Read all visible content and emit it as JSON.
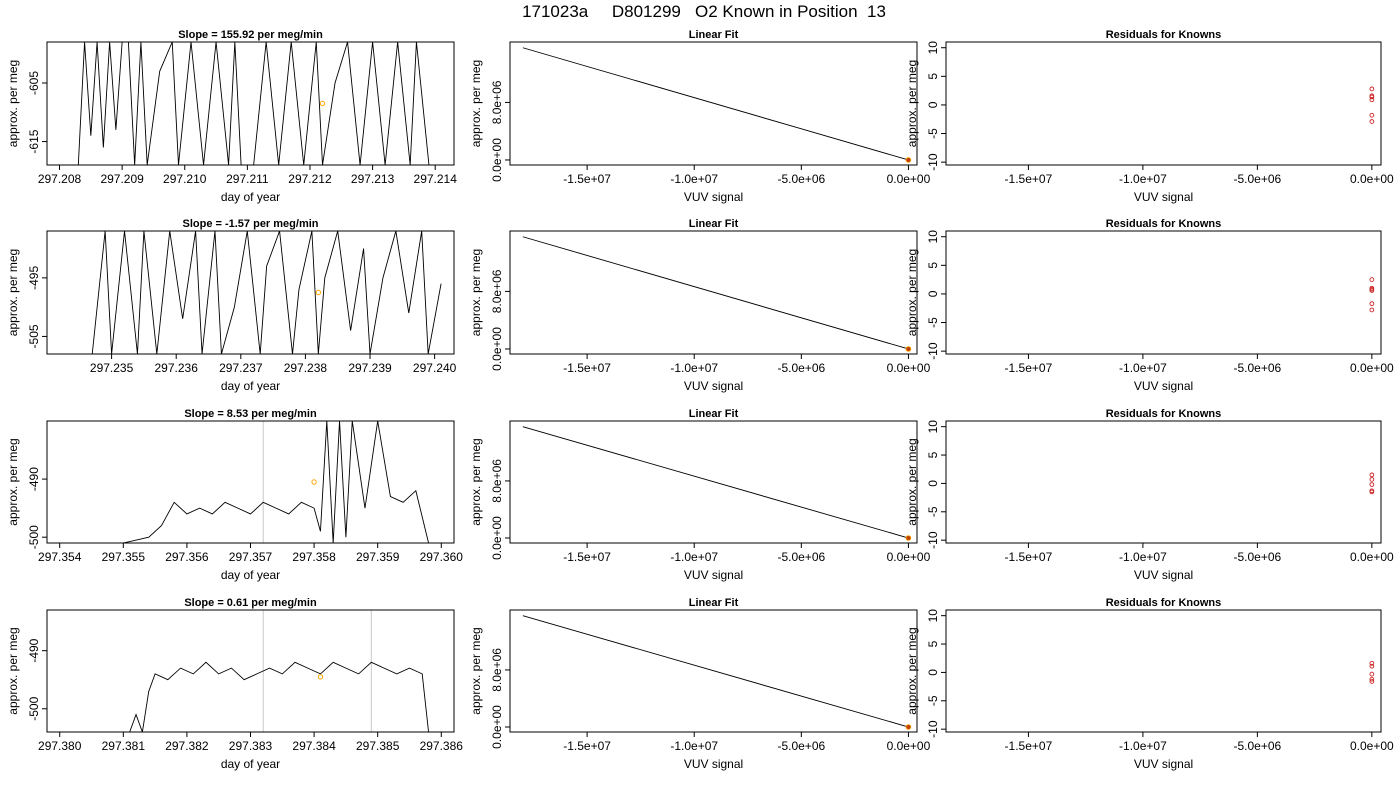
{
  "figure_title": "171023a     D801299   O2 Known in Position  13",
  "chart_data": [
    {
      "type": "line",
      "row": 1,
      "title": "Slope =  155.92  per meg/min",
      "xlabel": "day of year",
      "ylabel": "approx. per meg",
      "xlim": [
        297.2078,
        297.2143
      ],
      "ylim": [
        -619,
        -598
      ],
      "xticks": [
        "297.208",
        "297.209",
        "297.210",
        "297.211",
        "297.212",
        "297.213",
        "297.214"
      ],
      "yticks": [
        "-605",
        "-615"
      ],
      "series": [
        {
          "x": [
            297.2083,
            297.2084,
            297.2085,
            297.2086,
            297.2087,
            297.2088,
            297.2089,
            297.209,
            297.2091,
            297.2092,
            297.2093,
            297.2094,
            297.2096,
            297.2098,
            297.2099,
            297.2101,
            297.2103,
            297.2105,
            297.2107,
            297.2108,
            297.2109,
            297.2111,
            297.2113,
            297.2115,
            297.2117,
            297.2119,
            297.2121,
            297.2122,
            297.2124,
            297.2126,
            297.2128,
            297.213,
            297.2132,
            297.2134,
            297.2136,
            297.2137,
            297.2139
          ],
          "y": [
            -619,
            -598,
            -614,
            -598,
            -616,
            -598,
            -613,
            -598,
            -598,
            -619,
            -598,
            -619,
            -603,
            -598,
            -619,
            -598,
            -619,
            -598,
            -619,
            -598,
            -619,
            -619,
            -598,
            -619,
            -598,
            -619,
            -598,
            -619,
            -605,
            -598,
            -619,
            -598,
            -619,
            -598,
            -619,
            -598,
            -619
          ]
        }
      ],
      "known": {
        "x": 297.2122,
        "y": -608.5
      },
      "vlines": []
    },
    {
      "type": "line",
      "row": 2,
      "title": "Slope =  -1.57  per meg/min",
      "xlabel": "day of year",
      "ylabel": "approx. per meg",
      "xlim": [
        297.234,
        297.2403
      ],
      "ylim": [
        -508,
        -487
      ],
      "xticks": [
        "297.235",
        "297.236",
        "297.237",
        "297.238",
        "297.239",
        "297.240"
      ],
      "yticks": [
        "-495",
        "-505"
      ],
      "series": [
        {
          "x": [
            297.2347,
            297.2349,
            297.235,
            297.2352,
            297.2354,
            297.2355,
            297.2357,
            297.2359,
            297.2361,
            297.2363,
            297.2364,
            297.2366,
            297.2367,
            297.2369,
            297.2371,
            297.2373,
            297.2374,
            297.2376,
            297.2378,
            297.2379,
            297.2381,
            297.2382,
            297.2383,
            297.2385,
            297.2387,
            297.2389,
            297.239,
            297.2392,
            297.2394,
            297.2396,
            297.2398,
            297.2399,
            297.2401
          ],
          "y": [
            -508,
            -487,
            -508,
            -487,
            -508,
            -487,
            -508,
            -487,
            -502,
            -487,
            -508,
            -487,
            -508,
            -500,
            -487,
            -508,
            -493,
            -487,
            -508,
            -497,
            -487,
            -508,
            -495,
            -487,
            -504,
            -490,
            -508,
            -495,
            -487,
            -501,
            -487,
            -508,
            -496
          ]
        }
      ],
      "known": {
        "x": 297.2382,
        "y": -497.5
      },
      "vlines": []
    },
    {
      "type": "line",
      "row": 3,
      "title": "Slope =  8.53  per meg/min",
      "xlabel": "day of year",
      "ylabel": "approx. per meg",
      "xlim": [
        297.3538,
        297.3602
      ],
      "ylim": [
        -501,
        -480
      ],
      "xticks": [
        "297.354",
        "297.355",
        "297.356",
        "297.357",
        "297.358",
        "297.359",
        "297.360"
      ],
      "yticks": [
        "-490",
        "-500"
      ],
      "series": [
        {
          "x": [
            297.355,
            297.3554,
            297.3556,
            297.3557,
            297.3558,
            297.356,
            297.3562,
            297.3564,
            297.3566,
            297.3568,
            297.357,
            297.3572,
            297.3574,
            297.3576,
            297.3578,
            297.358,
            297.3581,
            297.3582,
            297.3583,
            297.3584,
            297.3585,
            297.3586,
            297.3588,
            297.359,
            297.3592,
            297.3594,
            297.3596,
            297.3598
          ],
          "y": [
            -501,
            -500,
            -498,
            -496,
            -494,
            -496,
            -495,
            -496,
            -494,
            -495,
            -496,
            -494,
            -495,
            -496,
            -494,
            -495,
            -499,
            -480,
            -501,
            -480,
            -500,
            -480,
            -495,
            -480,
            -493,
            -494,
            -492,
            -501
          ]
        }
      ],
      "known": {
        "x": 297.358,
        "y": -490.5
      },
      "vlines": [
        297.3572
      ]
    },
    {
      "type": "line",
      "row": 4,
      "title": "Slope =  0.61  per meg/min",
      "xlabel": "day of year",
      "ylabel": "approx. per meg",
      "xlim": [
        297.3798,
        297.3862
      ],
      "ylim": [
        -504,
        -483
      ],
      "xticks": [
        "297.380",
        "297.381",
        "297.382",
        "297.383",
        "297.384",
        "297.385",
        "297.386"
      ],
      "yticks": [
        "-490",
        "-500"
      ],
      "series": [
        {
          "x": [
            297.3811,
            297.3812,
            297.3813,
            297.3814,
            297.3815,
            297.3817,
            297.3819,
            297.3821,
            297.3823,
            297.3825,
            297.3827,
            297.3829,
            297.3831,
            297.3833,
            297.3835,
            297.3837,
            297.3839,
            297.3841,
            297.3843,
            297.3845,
            297.3847,
            297.3849,
            297.3851,
            297.3853,
            297.3855,
            297.3857,
            297.3858
          ],
          "y": [
            -504,
            -501,
            -504,
            -497,
            -494,
            -495,
            -493,
            -494,
            -492,
            -494,
            -493,
            -495,
            -494,
            -493,
            -494,
            -492,
            -493,
            -494,
            -492,
            -493,
            -494,
            -492,
            -493,
            -494,
            -493,
            -494,
            -504
          ]
        }
      ],
      "known": {
        "x": 297.3841,
        "y": -494.5
      },
      "vlines": [
        297.3832,
        297.3849
      ]
    },
    {
      "type": "line",
      "row": 1,
      "title": "Linear Fit",
      "xlabel": "VUV signal",
      "ylabel": "approx. per meg",
      "xlim": [
        -18600000.0,
        400000.0
      ],
      "ylim": [
        -700000.0,
        16400000.0
      ],
      "xticks": [
        "-1.5e+07",
        "-1.0e+07",
        "-5.0e+06",
        "0.0e+00"
      ],
      "yticks": [
        "0.0e+00",
        "8.0e+06"
      ],
      "series": [
        {
          "x": [
            -18000000.0,
            0
          ],
          "y": [
            15600000.0,
            0
          ]
        }
      ],
      "points": {
        "x": [
          0
        ],
        "y": [
          0
        ]
      }
    },
    {
      "type": "line",
      "row": 2,
      "title": "Linear Fit",
      "xlabel": "VUV signal",
      "ylabel": "approx. per meg",
      "xlim": [
        -18600000.0,
        400000.0
      ],
      "ylim": [
        -700000.0,
        16400000.0
      ],
      "xticks": [
        "-1.5e+07",
        "-1.0e+07",
        "-5.0e+06",
        "0.0e+00"
      ],
      "yticks": [
        "0.0e+00",
        "8.0e+06"
      ],
      "series": [
        {
          "x": [
            -18000000.0,
            0
          ],
          "y": [
            15600000.0,
            0
          ]
        }
      ],
      "points": {
        "x": [
          0
        ],
        "y": [
          0
        ]
      }
    },
    {
      "type": "line",
      "row": 3,
      "title": "Linear Fit",
      "xlabel": "VUV signal",
      "ylabel": "approx. per meg",
      "xlim": [
        -18600000.0,
        400000.0
      ],
      "ylim": [
        -700000.0,
        16400000.0
      ],
      "xticks": [
        "-1.5e+07",
        "-1.0e+07",
        "-5.0e+06",
        "0.0e+00"
      ],
      "yticks": [
        "0.0e+00",
        "8.0e+06"
      ],
      "series": [
        {
          "x": [
            -18000000.0,
            0
          ],
          "y": [
            15600000.0,
            0
          ]
        }
      ],
      "points": {
        "x": [
          0
        ],
        "y": [
          0
        ]
      }
    },
    {
      "type": "line",
      "row": 4,
      "title": "Linear Fit",
      "xlabel": "VUV signal",
      "ylabel": "approx. per meg",
      "xlim": [
        -18600000.0,
        400000.0
      ],
      "ylim": [
        -700000.0,
        16400000.0
      ],
      "xticks": [
        "-1.5e+07",
        "-1.0e+07",
        "-5.0e+06",
        "0.0e+00"
      ],
      "yticks": [
        "0.0e+00",
        "8.0e+06"
      ],
      "series": [
        {
          "x": [
            -18000000.0,
            0
          ],
          "y": [
            15600000.0,
            0
          ]
        }
      ],
      "points": {
        "x": [
          0
        ],
        "y": [
          0
        ]
      }
    },
    {
      "type": "scatter",
      "row": 1,
      "title": "Residuals for Knowns",
      "xlabel": "VUV signal",
      "ylabel": "approx. per meg",
      "xlim": [
        -18600000.0,
        400000.0
      ],
      "ylim": [
        -10.5,
        11
      ],
      "xticks": [
        "-1.5e+07",
        "-1.0e+07",
        "-5.0e+06",
        "0.0e+00"
      ],
      "yticks": [
        "-10",
        "-5",
        "0",
        "5",
        "10"
      ],
      "points": {
        "x": [
          0,
          0,
          0,
          0,
          0,
          0
        ],
        "y": [
          2.8,
          1.4,
          0.9,
          -1.8,
          -2.9,
          1.6
        ]
      }
    },
    {
      "type": "scatter",
      "row": 2,
      "title": "Residuals for Knowns",
      "xlabel": "VUV signal",
      "ylabel": "approx. per meg",
      "xlim": [
        -18600000.0,
        400000.0
      ],
      "ylim": [
        -10.5,
        11
      ],
      "xticks": [
        "-1.5e+07",
        "-1.0e+07",
        "-5.0e+06",
        "0.0e+00"
      ],
      "yticks": [
        "-10",
        "-5",
        "0",
        "5",
        "10"
      ],
      "points": {
        "x": [
          0,
          0,
          0,
          0,
          0,
          0
        ],
        "y": [
          2.5,
          1.0,
          0.6,
          -1.7,
          -2.8,
          0.8
        ]
      }
    },
    {
      "type": "scatter",
      "row": 3,
      "title": "Residuals for Knowns",
      "xlabel": "VUV signal",
      "ylabel": "approx. per meg",
      "xlim": [
        -18600000.0,
        400000.0
      ],
      "ylim": [
        -10.5,
        11
      ],
      "xticks": [
        "-1.5e+07",
        "-1.0e+07",
        "-5.0e+06",
        "0.0e+00"
      ],
      "yticks": [
        "-10",
        "-5",
        "0",
        "5",
        "10"
      ],
      "points": {
        "x": [
          0,
          0,
          0,
          0,
          0
        ],
        "y": [
          1.5,
          0.7,
          -0.2,
          -1.3,
          -1.5
        ]
      }
    },
    {
      "type": "scatter",
      "row": 4,
      "title": "Residuals for Knowns",
      "xlabel": "VUV signal",
      "ylabel": "approx. per meg",
      "xlim": [
        -18600000.0,
        400000.0
      ],
      "ylim": [
        -10.5,
        11
      ],
      "xticks": [
        "-1.5e+07",
        "-1.0e+07",
        "-5.0e+06",
        "0.0e+00"
      ],
      "yticks": [
        "-10",
        "-5",
        "0",
        "5",
        "10"
      ],
      "points": {
        "x": [
          0,
          0,
          0,
          0,
          0
        ],
        "y": [
          1.6,
          1.1,
          -0.3,
          -1.2,
          -1.6
        ]
      }
    }
  ],
  "colors": {
    "line": "#000000",
    "known": "#ffa500",
    "fit_point": "#c04000",
    "residual": "#cd2626",
    "vline": "#c8c8c8",
    "frame": "#000000"
  }
}
